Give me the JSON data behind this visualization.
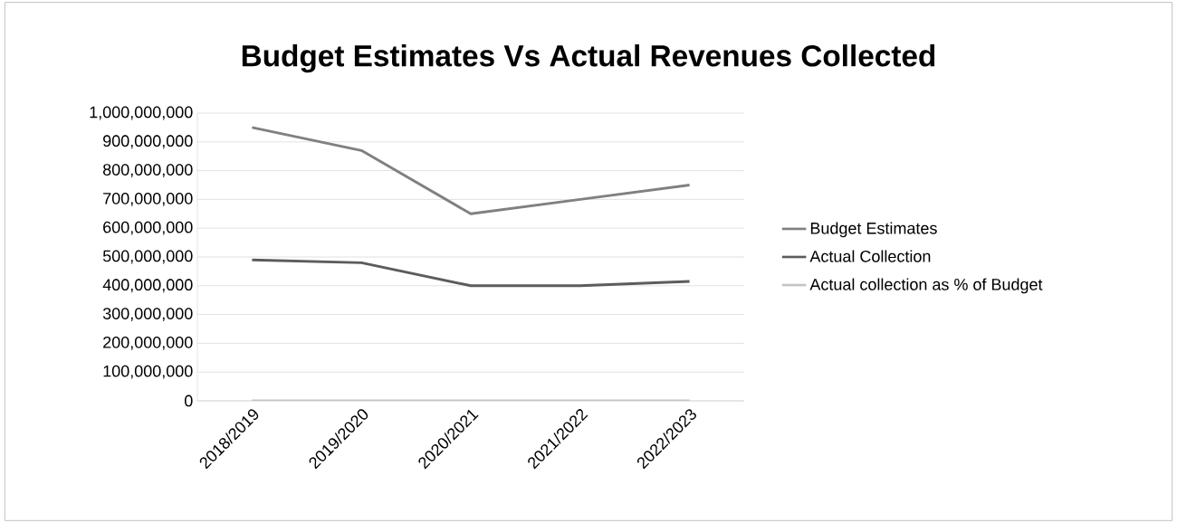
{
  "chart_data": {
    "type": "line",
    "title": "Budget Estimates Vs Actual Revenues Collected",
    "categories": [
      "2018/2019",
      "2019/2020",
      "2020/2021",
      "2021/2022",
      "2022/2023"
    ],
    "series": [
      {
        "name": "Budget Estimates",
        "color": "#808080",
        "values": [
          950000000,
          870000000,
          650000000,
          700000000,
          750000000
        ]
      },
      {
        "name": "Actual Collection",
        "color": "#5c5c5c",
        "values": [
          490000000,
          480000000,
          400000000,
          400000000,
          415000000
        ]
      },
      {
        "name": "Actual collection as % of Budget",
        "color": "#c4c4c4",
        "values": [
          0,
          0,
          0,
          0,
          0
        ]
      }
    ],
    "ylim": [
      0,
      1000000000
    ],
    "yticks": [
      {
        "value": 0,
        "label": "0"
      },
      {
        "value": 100000000,
        "label": "100,000,000"
      },
      {
        "value": 200000000,
        "label": "200,000,000"
      },
      {
        "value": 300000000,
        "label": "300,000,000"
      },
      {
        "value": 400000000,
        "label": "400,000,000"
      },
      {
        "value": 500000000,
        "label": "500,000,000"
      },
      {
        "value": 600000000,
        "label": "600,000,000"
      },
      {
        "value": 700000000,
        "label": "700,000,000"
      },
      {
        "value": 800000000,
        "label": "800,000,000"
      },
      {
        "value": 900000000,
        "label": "900,000,000"
      },
      {
        "value": 1000000000,
        "label": "1,000,000,000"
      }
    ],
    "grid": "y",
    "legend": "right",
    "marker": "none",
    "line_style": "solid"
  }
}
